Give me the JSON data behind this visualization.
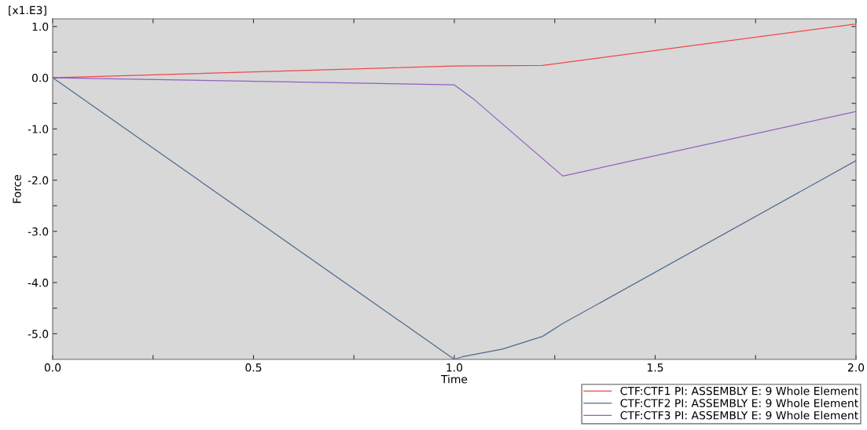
{
  "chart_data": {
    "type": "line",
    "xlabel": "Time",
    "ylabel": "Force",
    "annotations": [
      "[x1.E3]"
    ],
    "xlim": [
      0.0,
      2.0
    ],
    "ylim": [
      -5.5,
      1.15
    ],
    "xticks": [
      {
        "value": 0,
        "label": "0.0"
      },
      {
        "value": 0.25,
        "label": null
      },
      {
        "value": 0.5,
        "label": "0.5"
      },
      {
        "value": 0.75,
        "label": null
      },
      {
        "value": 1.0,
        "label": "1.0"
      },
      {
        "value": 1.25,
        "label": null
      },
      {
        "value": 1.5,
        "label": "1.5"
      },
      {
        "value": 1.75,
        "label": null
      },
      {
        "value": 2.0,
        "label": "2.0"
      }
    ],
    "yticks": [
      {
        "value": -5.0,
        "label": "-5.0"
      },
      {
        "value": -4.5,
        "label": null
      },
      {
        "value": -4.0,
        "label": "-4.0"
      },
      {
        "value": -3.5,
        "label": null
      },
      {
        "value": -3.0,
        "label": "-3.0"
      },
      {
        "value": -2.5,
        "label": null
      },
      {
        "value": -2.0,
        "label": "-2.0"
      },
      {
        "value": -1.5,
        "label": null
      },
      {
        "value": -1.0,
        "label": "-1.0"
      },
      {
        "value": -0.5,
        "label": null
      },
      {
        "value": 0,
        "label": "0.0"
      },
      {
        "value": 0.5,
        "label": null
      },
      {
        "value": 1.0,
        "label": "1.0"
      }
    ],
    "grid": false,
    "legend": "bottom right",
    "series": [
      {
        "name": "CTF:CTF1 PI: ASSEMBLY E: 9 Whole Element",
        "color": "#f04848",
        "x": [
          0,
          1.0,
          1.22,
          2.0
        ],
        "values": [
          0,
          0.23,
          0.24,
          1.05
        ]
      },
      {
        "name": "CTF:CTF2 PI: ASSEMBLY E: 9 Whole Element",
        "color": "#4f6a8f",
        "x": [
          0,
          1.0,
          1.02,
          1.12,
          1.22,
          1.27,
          2.0
        ],
        "values": [
          0,
          -5.5,
          -5.45,
          -5.3,
          -5.05,
          -4.8,
          -1.62
        ]
      },
      {
        "name": "CTF:CTF3 PI: ASSEMBLY E: 9 Whole Element",
        "color": "#9060c0",
        "x": [
          0,
          1.0,
          1.05,
          1.27,
          2.0
        ],
        "values": [
          0,
          -0.14,
          -0.43,
          -1.92,
          -0.66
        ]
      }
    ]
  }
}
